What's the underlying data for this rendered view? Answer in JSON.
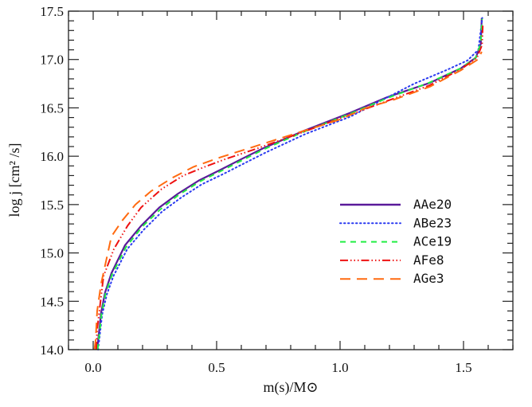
{
  "chart_data": {
    "type": "line",
    "title": "",
    "xlabel": "m(s)/M⊙",
    "ylabel": "log j [cm² /s]",
    "xlim": [
      -0.1,
      1.7
    ],
    "ylim": [
      14.0,
      17.5
    ],
    "xticks": [
      0.0,
      0.5,
      1.0,
      1.5
    ],
    "xtick_labels": [
      "0.0",
      "0.5",
      "1.0",
      "1.5"
    ],
    "yticks": [
      14.0,
      14.5,
      15.0,
      15.5,
      16.0,
      16.5,
      17.0,
      17.5
    ],
    "ytick_labels": [
      "14.0",
      "14.5",
      "15.0",
      "15.5",
      "16.0",
      "16.5",
      "17.0",
      "17.5"
    ],
    "grid": false,
    "legend_position": "center-right",
    "series": [
      {
        "name": "AAe20",
        "color": "#5a1a9a",
        "dash": "solid",
        "x": [
          0.016,
          0.032,
          0.048,
          0.074,
          0.129,
          0.194,
          0.268,
          0.342,
          0.429,
          0.516,
          0.6,
          0.687,
          0.85,
          1.042,
          1.19,
          1.365,
          1.49,
          1.55,
          1.57,
          1.574
        ],
        "y": [
          14.0,
          14.38,
          14.59,
          14.79,
          15.08,
          15.28,
          15.47,
          15.61,
          15.75,
          15.86,
          15.97,
          16.08,
          16.26,
          16.45,
          16.61,
          16.76,
          16.91,
          17.02,
          17.16,
          17.43
        ]
      },
      {
        "name": "ABe23",
        "color": "#2a3af0",
        "dash": "dotted",
        "x": [
          0.02,
          0.036,
          0.055,
          0.082,
          0.138,
          0.205,
          0.28,
          0.355,
          0.44,
          0.53,
          0.615,
          0.7,
          0.86,
          1.042,
          1.155,
          1.3,
          1.43,
          1.516,
          1.56,
          1.576
        ],
        "y": [
          14.0,
          14.36,
          14.57,
          14.76,
          15.04,
          15.24,
          15.43,
          15.57,
          15.71,
          15.82,
          15.93,
          16.04,
          16.23,
          16.41,
          16.56,
          16.75,
          16.89,
          16.99,
          17.1,
          17.43
        ]
      },
      {
        "name": "ACe19",
        "color": "#22ee44",
        "dash": "dashed",
        "x": [
          0.018,
          0.034,
          0.05,
          0.077,
          0.133,
          0.198,
          0.272,
          0.346,
          0.433,
          0.52,
          0.605,
          0.69,
          0.85,
          1.042,
          1.19,
          1.36,
          1.49,
          1.55,
          1.57,
          1.575
        ],
        "y": [
          14.0,
          14.37,
          14.58,
          14.78,
          15.06,
          15.27,
          15.45,
          15.6,
          15.74,
          15.85,
          15.96,
          16.07,
          16.25,
          16.44,
          16.6,
          16.76,
          16.91,
          17.02,
          17.17,
          17.42
        ]
      },
      {
        "name": "AFe8",
        "color": "#ee1111",
        "dash": "dash-dot-dot",
        "x": [
          0.012,
          0.016,
          0.042,
          0.084,
          0.139,
          0.194,
          0.277,
          0.365,
          0.452,
          0.535,
          0.665,
          0.85,
          1.042,
          1.2,
          1.36,
          1.49,
          1.555,
          1.575,
          1.578
        ],
        "y": [
          14.0,
          14.21,
          14.76,
          15.04,
          15.28,
          15.47,
          15.66,
          15.8,
          15.89,
          15.97,
          16.08,
          16.25,
          16.43,
          16.58,
          16.73,
          16.9,
          17.02,
          17.15,
          17.35
        ]
      },
      {
        "name": "AGe3",
        "color": "#ff6a10",
        "dash": "long-dash",
        "x": [
          0.005,
          0.01,
          0.016,
          0.032,
          0.074,
          0.116,
          0.171,
          0.235,
          0.323,
          0.406,
          0.516,
          0.665,
          0.85,
          1.0,
          1.106,
          1.213,
          1.365,
          1.49,
          1.558,
          1.574
        ],
        "y": [
          14.0,
          14.1,
          14.4,
          14.68,
          15.17,
          15.33,
          15.5,
          15.64,
          15.78,
          15.89,
          15.99,
          16.11,
          16.26,
          16.38,
          16.5,
          16.58,
          16.72,
          16.89,
          17.0,
          17.08
        ]
      }
    ]
  }
}
